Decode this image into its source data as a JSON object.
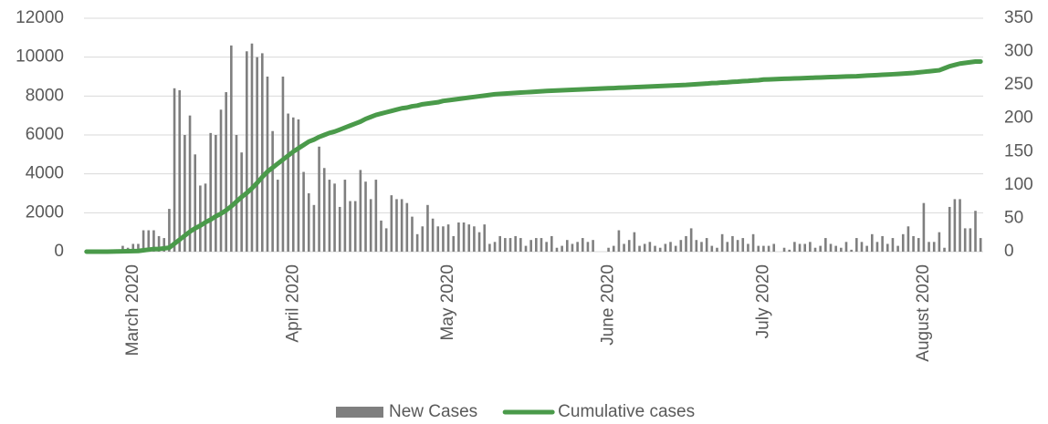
{
  "chart_data": {
    "type": "bar-line",
    "categories": [
      null,
      null,
      null,
      null,
      null,
      null,
      null,
      null,
      null,
      "March 2020",
      null,
      null,
      null,
      null,
      null,
      null,
      null,
      null,
      null,
      null,
      null,
      null,
      null,
      null,
      null,
      null,
      null,
      null,
      null,
      null,
      null,
      null,
      null,
      null,
      null,
      null,
      null,
      null,
      null,
      null,
      "April 2020",
      null,
      null,
      null,
      null,
      null,
      null,
      null,
      null,
      null,
      null,
      null,
      null,
      null,
      null,
      null,
      null,
      null,
      null,
      null,
      null,
      null,
      null,
      null,
      null,
      null,
      null,
      null,
      null,
      null,
      "May 2020",
      null,
      null,
      null,
      null,
      null,
      null,
      null,
      null,
      null,
      null,
      null,
      null,
      null,
      null,
      null,
      null,
      null,
      null,
      null,
      null,
      null,
      null,
      null,
      null,
      null,
      null,
      null,
      null,
      null,
      null,
      "June 2020",
      null,
      null,
      null,
      null,
      null,
      null,
      null,
      null,
      null,
      null,
      null,
      null,
      null,
      null,
      null,
      null,
      null,
      null,
      null,
      null,
      null,
      null,
      null,
      null,
      null,
      null,
      null,
      null,
      null,
      "July 2020",
      null,
      null,
      null,
      null,
      null,
      null,
      null,
      null,
      null,
      null,
      null,
      null,
      null,
      null,
      null,
      null,
      null,
      null,
      null,
      null,
      null,
      null,
      null,
      null,
      null,
      null,
      null,
      null,
      null,
      null,
      "August 2020",
      null,
      null,
      null,
      null,
      null,
      null,
      null,
      null,
      null,
      null,
      null
    ],
    "series": [
      {
        "name": "New Cases",
        "color": "#7f7f7f",
        "axis": "y",
        "kind": "bar",
        "values": [
          0,
          0,
          0,
          0,
          0,
          0,
          100,
          300,
          200,
          400,
          400,
          1100,
          1100,
          1100,
          800,
          700,
          2200,
          8400,
          8300,
          6000,
          7000,
          5000,
          3400,
          3500,
          6100,
          6000,
          7300,
          8200,
          10600,
          6000,
          5100,
          10300,
          10700,
          10000,
          10200,
          9000,
          6200,
          3700,
          9000,
          7100,
          6900,
          6800,
          4100,
          3000,
          2400,
          5400,
          4300,
          3700,
          3500,
          2300,
          3700,
          2600,
          2600,
          4200,
          3600,
          2700,
          3700,
          1600,
          1200,
          2900,
          2700,
          2700,
          2500,
          1800,
          900,
          1300,
          2400,
          1700,
          1300,
          1300,
          1400,
          800,
          1500,
          1500,
          1400,
          1300,
          1000,
          1400,
          400,
          500,
          800,
          700,
          700,
          800,
          700,
          300,
          600,
          700,
          700,
          500,
          800,
          200,
          300,
          600,
          400,
          500,
          700,
          500,
          600,
          0,
          0,
          200,
          300,
          1100,
          400,
          600,
          1000,
          300,
          400,
          500,
          300,
          200,
          400,
          500,
          300,
          600,
          800,
          1200,
          600,
          500,
          700,
          300,
          200,
          900,
          500,
          800,
          600,
          700,
          400,
          900,
          300,
          300,
          300,
          400,
          0,
          200,
          100,
          500,
          400,
          400,
          500,
          200,
          300,
          700,
          400,
          300,
          200,
          500,
          100,
          700,
          500,
          300,
          900,
          500,
          800,
          400,
          700,
          300,
          900,
          1300,
          800,
          700,
          2500,
          500,
          500,
          1000,
          200,
          2300,
          2700,
          2700,
          1200,
          1200,
          2100,
          700
        ]
      },
      {
        "name": "Cumulative cases",
        "color": "#4a9a4a",
        "axis": "y2",
        "kind": "line",
        "values": [
          0,
          0,
          0,
          0,
          0,
          0.2,
          0.3,
          0.5,
          0.7,
          0.9,
          1,
          2,
          3,
          4,
          4,
          5,
          6,
          12,
          18,
          24,
          30,
          35,
          39,
          44,
          48,
          53,
          57,
          62,
          68,
          75,
          82,
          88,
          95,
          103,
          112,
          120,
          126,
          132,
          138,
          144,
          150,
          155,
          160,
          165,
          168,
          172,
          175,
          178,
          180,
          183,
          186,
          189,
          192,
          195,
          199,
          202,
          205,
          207,
          209,
          211,
          213,
          215,
          216,
          218,
          219,
          221,
          222,
          223,
          224,
          226,
          227,
          228,
          229,
          230,
          231,
          232,
          233,
          234,
          235,
          236,
          236.5,
          237,
          237.5,
          238,
          238.5,
          239,
          239.5,
          240,
          240.5,
          241,
          241.3,
          241.7,
          242,
          242.3,
          242.7,
          243,
          243.3,
          243.7,
          244,
          244.3,
          244.7,
          245,
          245.3,
          245.7,
          246,
          246.3,
          246.7,
          247,
          247.3,
          247.7,
          248,
          248.3,
          248.7,
          249,
          249.3,
          249.7,
          250,
          250.5,
          251,
          251.6,
          252,
          252.7,
          253,
          253.7,
          254,
          254.7,
          255,
          255.7,
          256,
          256.7,
          257,
          258,
          258.3,
          258.6,
          258.9,
          259.2,
          259.5,
          259.8,
          260,
          260.3,
          260.6,
          260.9,
          261.2,
          261.5,
          261.8,
          262,
          262.3,
          262.6,
          262.8,
          263,
          263.5,
          264,
          264.4,
          264.8,
          265.2,
          265.6,
          266,
          266.5,
          267,
          267.5,
          268,
          268.8,
          269.6,
          270.4,
          271.2,
          272,
          275,
          278,
          280,
          282,
          283,
          284,
          285,
          285
        ]
      }
    ],
    "ylim": [
      0,
      12000
    ],
    "yticks": [
      0,
      2000,
      4000,
      6000,
      8000,
      10000,
      12000
    ],
    "y2lim": [
      0,
      350
    ],
    "y2ticks": [
      0,
      50,
      100,
      150,
      200,
      250,
      300,
      350
    ],
    "grid": true,
    "legend": "bottom"
  }
}
